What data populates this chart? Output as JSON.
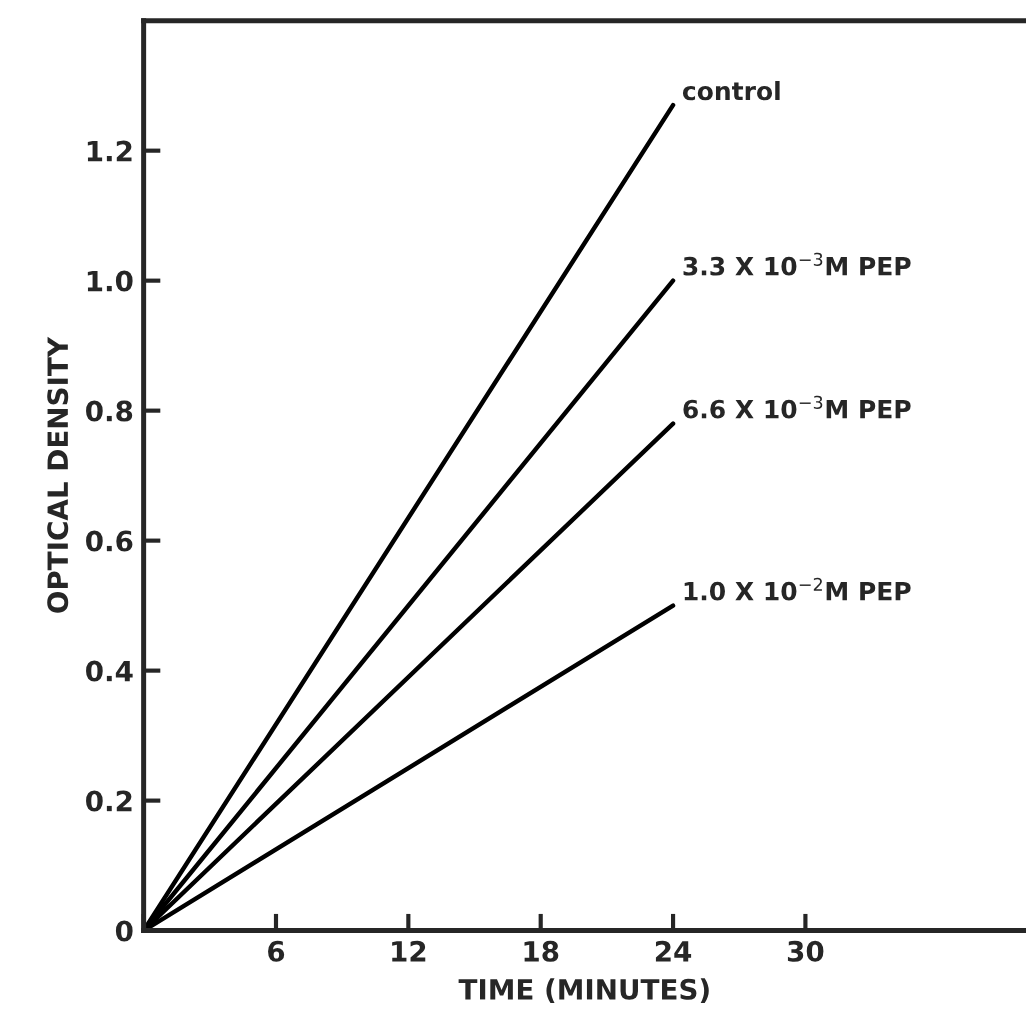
{
  "chart_data": {
    "type": "line",
    "xlabel": "TIME (MINUTES)",
    "ylabel": "OPTICAL DENSITY",
    "x": [
      0,
      24
    ],
    "series": [
      {
        "name": "control",
        "color": "#000000",
        "values": [
          0,
          1.27
        ]
      },
      {
        "name": "3.3 X 10$^{−3}$M PEP",
        "color": "#000000",
        "values": [
          0,
          1.0
        ]
      },
      {
        "name": "6.6 X 10$^{−3}$M PEP",
        "color": "#000000",
        "values": [
          0,
          0.78
        ]
      },
      {
        "name": "1.0 X 10$^{−2}$M PEP",
        "color": "#000000",
        "values": [
          0,
          0.5
        ]
      }
    ],
    "xlim": [
      0,
      40
    ],
    "xticks": [
      {
        "value": 0,
        "label": null
      },
      6,
      12,
      18,
      24,
      30
    ],
    "ylim": [
      0,
      1.4
    ],
    "yticks": [
      0,
      0.2,
      0.4,
      0.6,
      0.8,
      {
        "value": 1.0,
        "label": "1.0"
      },
      1.2
    ],
    "grid": false,
    "legend": false,
    "marker": "none",
    "line_style": "solid"
  }
}
